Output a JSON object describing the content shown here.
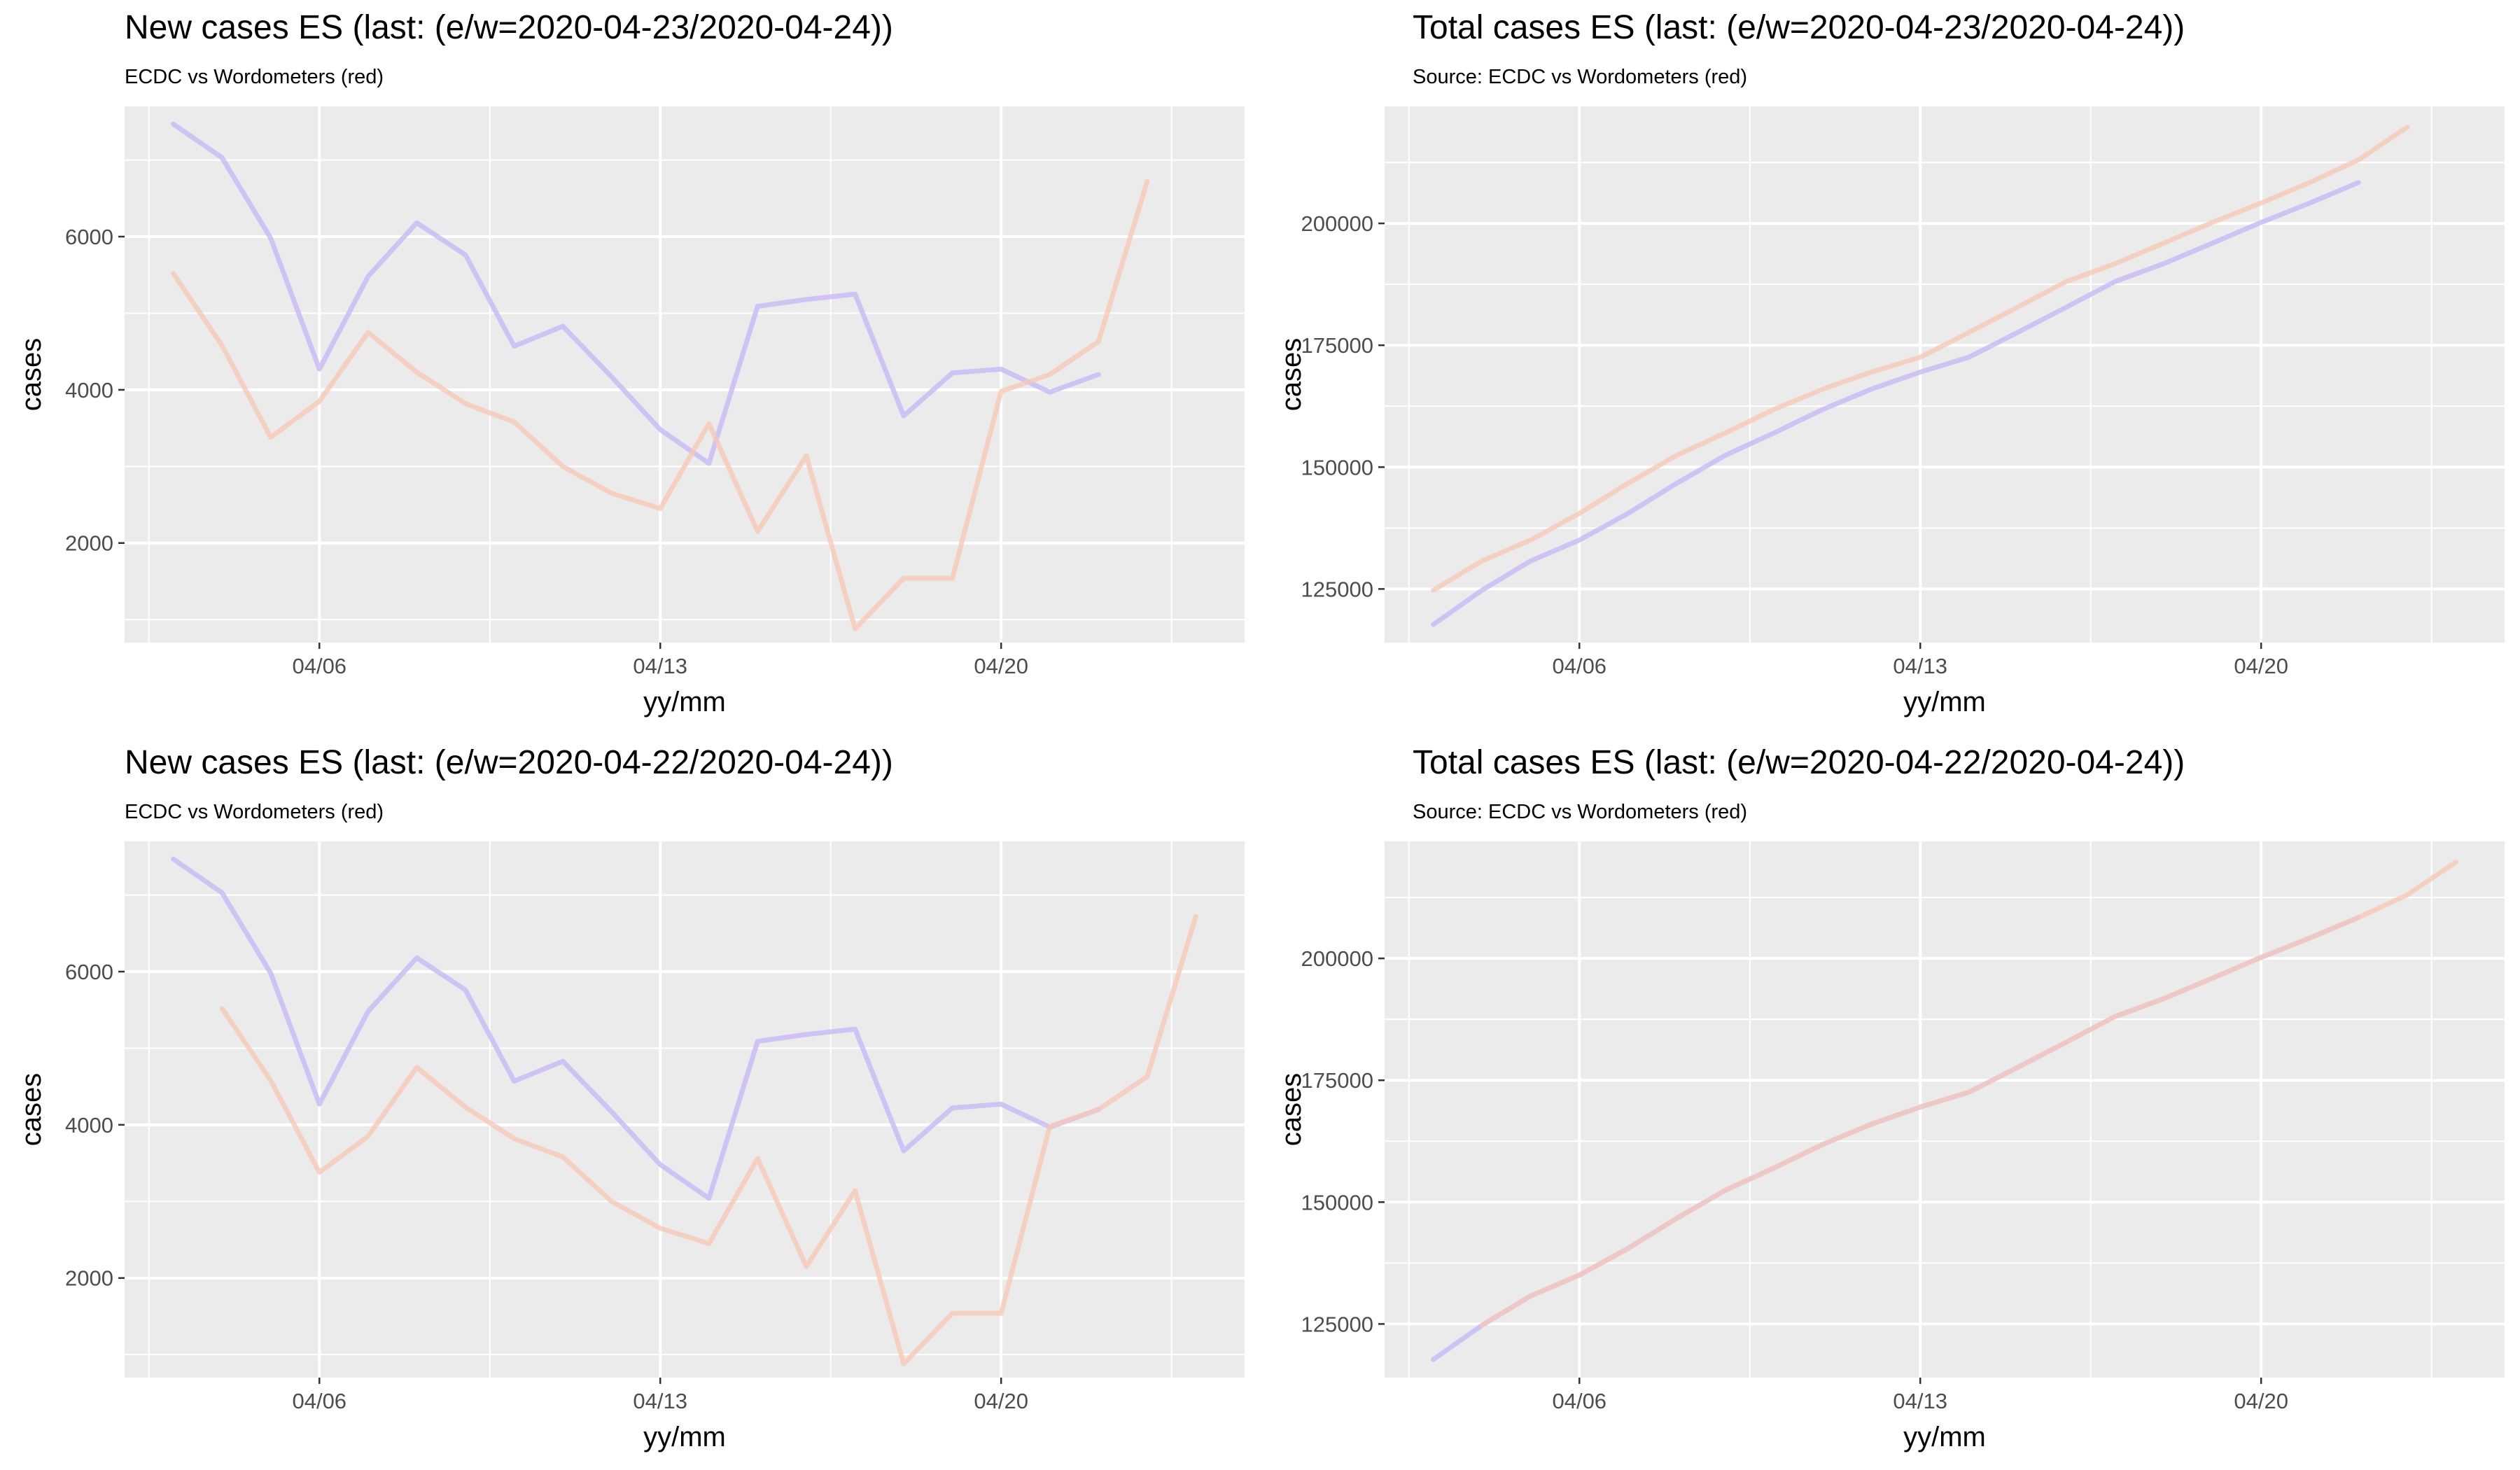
{
  "chart_data": [
    {
      "type": "line",
      "title": "New cases ES (last: (e/w=2020-04-23/2020-04-24))",
      "subtitle": "ECDC vs Wordometers (red)",
      "xlabel": "yy/mm",
      "ylabel": "cases",
      "x_ticks": [
        "04/06",
        "04/13",
        "04/20"
      ],
      "y_ticks": [
        2000,
        4000,
        6000
      ],
      "ylim": [
        700,
        7700
      ],
      "grid": true,
      "series": [
        {
          "color": "#c9bcf4",
          "x": [
            "2020-04-03",
            "2020-04-04",
            "2020-04-05",
            "2020-04-06",
            "2020-04-07",
            "2020-04-08",
            "2020-04-09",
            "2020-04-10",
            "2020-04-11",
            "2020-04-12",
            "2020-04-13",
            "2020-04-14",
            "2020-04-15",
            "2020-04-16",
            "2020-04-17",
            "2020-04-18",
            "2020-04-19",
            "2020-04-20",
            "2020-04-21",
            "2020-04-22",
            "2020-04-23"
          ],
          "y": [
            7470,
            7030,
            5980,
            4270,
            5480,
            6180,
            5760,
            4570,
            4830,
            4170,
            3480,
            3040,
            5090,
            5180,
            5250,
            3660,
            4220,
            4270,
            3970,
            4200,
            null
          ]
        },
        {
          "color": "#f6c9b9",
          "x": [
            "2020-04-03",
            "2020-04-04",
            "2020-04-05",
            "2020-04-06",
            "2020-04-07",
            "2020-04-08",
            "2020-04-09",
            "2020-04-10",
            "2020-04-11",
            "2020-04-12",
            "2020-04-13",
            "2020-04-14",
            "2020-04-15",
            "2020-04-16",
            "2020-04-17",
            "2020-04-18",
            "2020-04-19",
            "2020-04-20",
            "2020-04-21",
            "2020-04-22",
            "2020-04-23",
            "2020-04-24"
          ],
          "y": [
            5520,
            4580,
            3380,
            3850,
            4750,
            4230,
            3820,
            3580,
            3000,
            2650,
            2450,
            3560,
            2150,
            3140,
            880,
            1540,
            1540,
            3980,
            4200,
            4630,
            6720,
            null
          ]
        }
      ]
    },
    {
      "type": "line",
      "title": "Total cases ES (last: (e/w=2020-04-23/2020-04-24))",
      "subtitle": "Source: ECDC vs Wordometers (red)",
      "xlabel": "yy/mm",
      "ylabel": "cases",
      "x_ticks": [
        "04/06",
        "04/13",
        "04/20"
      ],
      "y_ticks": [
        125000,
        150000,
        175000,
        200000
      ],
      "ylim": [
        114000,
        224000
      ],
      "grid": true,
      "series": [
        {
          "color": "#c9bcf4",
          "x": [
            "2020-04-03",
            "2020-04-04",
            "2020-04-05",
            "2020-04-06",
            "2020-04-07",
            "2020-04-08",
            "2020-04-09",
            "2020-04-10",
            "2020-04-11",
            "2020-04-12",
            "2020-04-13",
            "2020-04-14",
            "2020-04-15",
            "2020-04-16",
            "2020-04-17",
            "2020-04-18",
            "2020-04-19",
            "2020-04-20",
            "2020-04-21",
            "2020-04-22",
            "2020-04-23"
          ],
          "y": [
            117710,
            124736,
            130759,
            135032,
            140510,
            146690,
            152446,
            157022,
            161852,
            166019,
            169496,
            172541,
            177633,
            182816,
            188068,
            191726,
            195944,
            200210,
            204178,
            208389,
            null
          ]
        },
        {
          "color": "#f6c9b9",
          "x": [
            "2020-04-03",
            "2020-04-04",
            "2020-04-05",
            "2020-04-06",
            "2020-04-07",
            "2020-04-08",
            "2020-04-09",
            "2020-04-10",
            "2020-04-11",
            "2020-04-12",
            "2020-04-13",
            "2020-04-14",
            "2020-04-15",
            "2020-04-16",
            "2020-04-17",
            "2020-04-18",
            "2020-04-19",
            "2020-04-20",
            "2020-04-21",
            "2020-04-22",
            "2020-04-23",
            "2020-04-24"
          ],
          "y": [
            124736,
            130759,
            135032,
            140510,
            146690,
            152446,
            157022,
            161852,
            166019,
            169496,
            172541,
            177633,
            182816,
            188068,
            191726,
            195944,
            200210,
            204178,
            208389,
            213024,
            219764,
            null
          ]
        }
      ]
    },
    {
      "type": "line",
      "title": "New cases ES (last: (e/w=2020-04-22/2020-04-24))",
      "subtitle": "ECDC vs Wordometers (red)",
      "xlabel": "yy/mm",
      "ylabel": "cases",
      "x_ticks": [
        "04/06",
        "04/13",
        "04/20"
      ],
      "y_ticks": [
        2000,
        4000,
        6000
      ],
      "ylim": [
        700,
        7700
      ],
      "grid": true,
      "series": [
        {
          "color": "#c9bcf4",
          "x": [
            "2020-04-03",
            "2020-04-04",
            "2020-04-05",
            "2020-04-06",
            "2020-04-07",
            "2020-04-08",
            "2020-04-09",
            "2020-04-10",
            "2020-04-11",
            "2020-04-12",
            "2020-04-13",
            "2020-04-14",
            "2020-04-15",
            "2020-04-16",
            "2020-04-17",
            "2020-04-18",
            "2020-04-19",
            "2020-04-20",
            "2020-04-21",
            "2020-04-22"
          ],
          "y": [
            7470,
            7030,
            5980,
            4270,
            5480,
            6180,
            5760,
            4570,
            4830,
            4170,
            3480,
            3040,
            5090,
            5180,
            5250,
            3660,
            4220,
            4270,
            3970,
            4200
          ]
        },
        {
          "color": "#f6c9b9",
          "x": [
            "2020-04-04",
            "2020-04-05",
            "2020-04-06",
            "2020-04-07",
            "2020-04-08",
            "2020-04-09",
            "2020-04-10",
            "2020-04-11",
            "2020-04-12",
            "2020-04-13",
            "2020-04-14",
            "2020-04-15",
            "2020-04-16",
            "2020-04-17",
            "2020-04-18",
            "2020-04-19",
            "2020-04-20",
            "2020-04-21",
            "2020-04-22",
            "2020-04-23",
            "2020-04-24"
          ],
          "y": [
            5520,
            4580,
            3380,
            3850,
            4750,
            4230,
            3820,
            3580,
            3000,
            2650,
            2450,
            3560,
            2150,
            3140,
            880,
            1540,
            1540,
            3980,
            4200,
            4630,
            6720
          ]
        }
      ]
    },
    {
      "type": "line",
      "title": "Total cases ES (last: (e/w=2020-04-22/2020-04-24))",
      "subtitle": "Source: ECDC vs Wordometers (red)",
      "xlabel": "yy/mm",
      "ylabel": "cases",
      "x_ticks": [
        "04/06",
        "04/13",
        "04/20"
      ],
      "y_ticks": [
        125000,
        150000,
        175000,
        200000
      ],
      "ylim": [
        114000,
        224000
      ],
      "grid": true,
      "series": [
        {
          "color": "#c9bcf4",
          "x": [
            "2020-04-03",
            "2020-04-04",
            "2020-04-05",
            "2020-04-06",
            "2020-04-07",
            "2020-04-08",
            "2020-04-09",
            "2020-04-10",
            "2020-04-11",
            "2020-04-12",
            "2020-04-13",
            "2020-04-14",
            "2020-04-15",
            "2020-04-16",
            "2020-04-17",
            "2020-04-18",
            "2020-04-19",
            "2020-04-20",
            "2020-04-21",
            "2020-04-22"
          ],
          "y": [
            117710,
            124736,
            130759,
            135032,
            140510,
            146690,
            152446,
            157022,
            161852,
            166019,
            169496,
            172541,
            177633,
            182816,
            188068,
            191726,
            195944,
            200210,
            204178,
            208389
          ]
        },
        {
          "color": "#f6c9b9",
          "x": [
            "2020-04-04",
            "2020-04-05",
            "2020-04-06",
            "2020-04-07",
            "2020-04-08",
            "2020-04-09",
            "2020-04-10",
            "2020-04-11",
            "2020-04-12",
            "2020-04-13",
            "2020-04-14",
            "2020-04-15",
            "2020-04-16",
            "2020-04-17",
            "2020-04-18",
            "2020-04-19",
            "2020-04-20",
            "2020-04-21",
            "2020-04-22",
            "2020-04-23",
            "2020-04-24"
          ],
          "y": [
            124736,
            130759,
            135032,
            140510,
            146690,
            152446,
            157022,
            161852,
            166019,
            169496,
            172541,
            177633,
            182816,
            188068,
            191726,
            195944,
            200210,
            204178,
            208389,
            213024,
            219764
          ]
        }
      ]
    }
  ]
}
